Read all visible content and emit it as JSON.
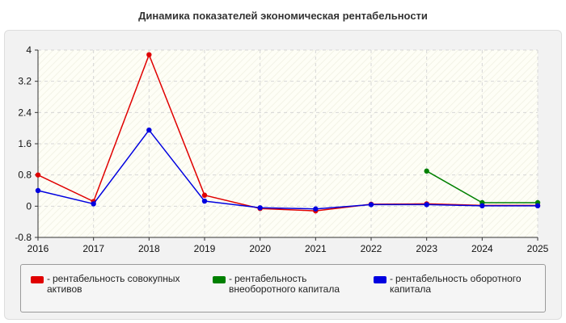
{
  "chart_data": {
    "type": "line",
    "title": "Динамика показателей экономическая рентабельности",
    "x": [
      "2016",
      "2017",
      "2018",
      "2019",
      "2020",
      "2021",
      "2022",
      "2023",
      "2024",
      "2025"
    ],
    "ylim": [
      -0.8,
      4
    ],
    "yticks": [
      "4",
      "3.2",
      "2.4",
      "1.6",
      "0.8",
      "0",
      "-0.8"
    ],
    "ytick_values": [
      4,
      3.2,
      2.4,
      1.6,
      0.8,
      0,
      -0.8
    ],
    "grid": true,
    "legend_position": "bottom",
    "series": [
      {
        "name": "рентабельность совокупных активов",
        "color": "#e00000",
        "values": [
          0.8,
          0.12,
          3.88,
          0.28,
          -0.06,
          -0.12,
          0.05,
          0.06,
          0.02,
          0.02
        ]
      },
      {
        "name": "рентабельность внеоборотного капитала",
        "color": "#008000",
        "values": [
          null,
          null,
          null,
          null,
          null,
          null,
          null,
          0.9,
          0.09,
          0.09
        ]
      },
      {
        "name": "рентабельность оборотного капитала",
        "color": "#0000e0",
        "values": [
          0.4,
          0.06,
          1.95,
          0.13,
          -0.04,
          -0.07,
          0.04,
          0.04,
          0.01,
          0.01
        ]
      }
    ]
  },
  "legend": {
    "dash": "-",
    "items": [
      {
        "line1": "рентабельность совокупных",
        "line2": "активов"
      },
      {
        "line1": "рентабельность",
        "line2": "внеоборотного капитала"
      },
      {
        "line1": "рентабельность оборотного",
        "line2": "капитала"
      }
    ]
  }
}
